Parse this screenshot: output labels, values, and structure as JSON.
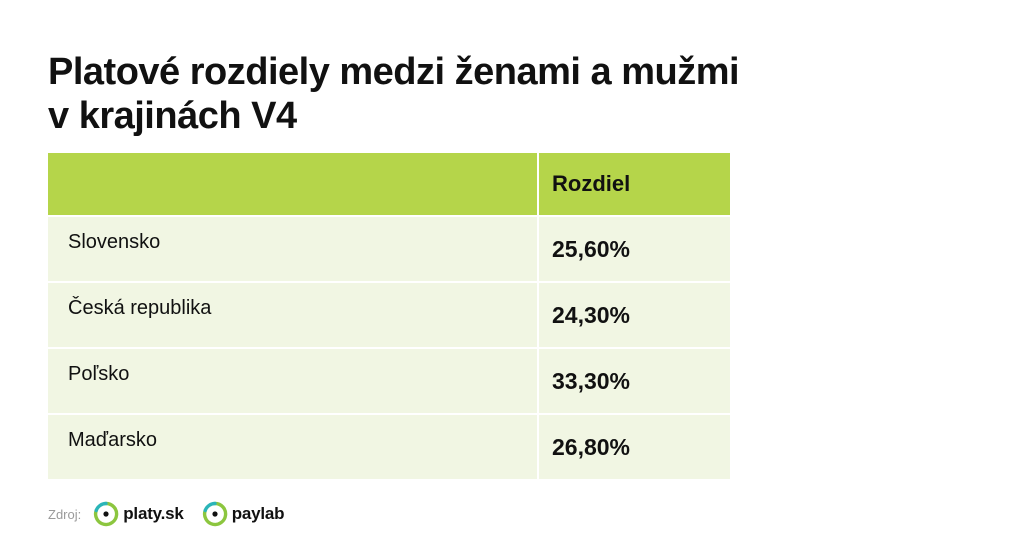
{
  "title": {
    "line1": "Platové rozdiely medzi ženami a mužmi",
    "line2": "v krajinách V4"
  },
  "chart_data": {
    "type": "table",
    "title": "Platové rozdiely medzi ženami a mužmi v krajinách V4",
    "columns": [
      "",
      "Rozdiel"
    ],
    "rows": [
      {
        "country": "Slovensko",
        "value_label": "25,60%",
        "value": 25.6
      },
      {
        "country": "Česká republika",
        "value_label": "24,30%",
        "value": 24.3
      },
      {
        "country": "Poľsko",
        "value_label": "33,30%",
        "value": 33.3
      },
      {
        "country": "Maďarsko",
        "value_label": "26,80%",
        "value": 26.8
      }
    ],
    "colors": {
      "header_background": "#b5d54a",
      "row_background": "#f1f6e3"
    }
  },
  "footer": {
    "source_label": "Zdroj:",
    "brands": [
      {
        "name": "platy.sk",
        "icon": "platy-logo-icon"
      },
      {
        "name": "paylab",
        "icon": "paylab-logo-icon"
      }
    ],
    "logo_colors": {
      "green": "#8cc63f",
      "teal": "#2bb5b8",
      "dot": "#111111"
    }
  }
}
